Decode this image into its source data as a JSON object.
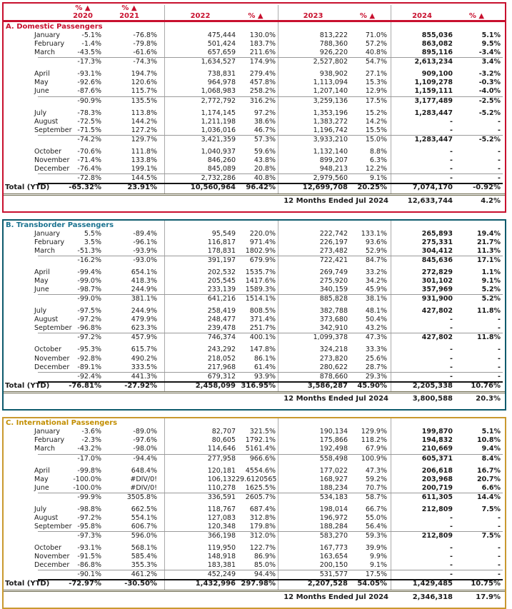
{
  "header": {
    "text_color": "#C8102E",
    "columns": [
      "% ▲\n2020",
      "% ▲\n2021",
      "2022",
      "% ▲",
      "2023",
      "% ▲",
      "2024",
      "% ▲"
    ],
    "column_names": [
      "pct-chg-2020",
      "pct-chg-2021",
      "year-2022",
      "pct-chg-2022",
      "year-2023",
      "pct-chg-2023",
      "year-2024",
      "pct-chg-2024"
    ]
  },
  "sections": [
    {
      "id": "domestic",
      "title": "A. Domestic Passengers",
      "border_color": "#C8102E",
      "title_color": "#C8102E",
      "show_header": true,
      "rows": [
        {
          "t": "m",
          "l": "January",
          "v": [
            "-5.1%",
            "-76.8%",
            "475,444",
            "130.0%",
            "813,222",
            "71.0%",
            "855,036",
            "5.1%"
          ]
        },
        {
          "t": "m",
          "l": "February",
          "v": [
            "-1.4%",
            "-79.8%",
            "501,424",
            "183.7%",
            "788,360",
            "57.2%",
            "863,082",
            "9.5%"
          ]
        },
        {
          "t": "m",
          "l": "March",
          "v": [
            "-43.5%",
            "-61.6%",
            "657,659",
            "211.6%",
            "926,220",
            "40.8%",
            "895,116",
            "-3.4%"
          ]
        },
        {
          "t": "s",
          "v": [
            "-17.3%",
            "-74.3%",
            "1,634,527",
            "174.9%",
            "2,527,802",
            "54.7%",
            "2,613,234",
            "3.4%"
          ]
        },
        {
          "t": "g"
        },
        {
          "t": "m",
          "l": "April",
          "v": [
            "-93.1%",
            "194.7%",
            "738,831",
            "279.4%",
            "938,902",
            "27.1%",
            "909,100",
            "-3.2%"
          ]
        },
        {
          "t": "m",
          "l": "May",
          "v": [
            "-92.6%",
            "120.6%",
            "964,978",
            "457.8%",
            "1,113,094",
            "15.3%",
            "1,109,278",
            "-0.3%"
          ]
        },
        {
          "t": "m",
          "l": "June",
          "v": [
            "-87.6%",
            "115.7%",
            "1,068,983",
            "258.2%",
            "1,207,140",
            "12.9%",
            "1,159,111",
            "-4.0%"
          ]
        },
        {
          "t": "s",
          "v": [
            "-90.9%",
            "135.5%",
            "2,772,792",
            "316.2%",
            "3,259,136",
            "17.5%",
            "3,177,489",
            "-2.5%"
          ]
        },
        {
          "t": "g"
        },
        {
          "t": "m",
          "l": "July",
          "v": [
            "-78.3%",
            "113.8%",
            "1,174,145",
            "97.2%",
            "1,353,196",
            "15.2%",
            "1,283,447",
            "-5.2%"
          ]
        },
        {
          "t": "m",
          "l": "August",
          "v": [
            "-72.5%",
            "144.2%",
            "1,211,198",
            "38.6%",
            "1,383,272",
            "14.2%",
            "-",
            "-"
          ]
        },
        {
          "t": "m",
          "l": "September",
          "v": [
            "-71.5%",
            "127.2%",
            "1,036,016",
            "46.7%",
            "1,196,742",
            "15.5%",
            "-",
            "-"
          ]
        },
        {
          "t": "s",
          "v": [
            "-74.2%",
            "129.7%",
            "3,421,359",
            "57.3%",
            "3,933,210",
            "15.0%",
            "1,283,447",
            "-5.2%"
          ]
        },
        {
          "t": "g"
        },
        {
          "t": "m",
          "l": "October",
          "v": [
            "-70.6%",
            "111.8%",
            "1,040,937",
            "59.6%",
            "1,132,140",
            "8.8%",
            "-",
            "-"
          ]
        },
        {
          "t": "m",
          "l": "November",
          "v": [
            "-71.4%",
            "133.8%",
            "846,260",
            "43.8%",
            "899,207",
            "6.3%",
            "-",
            "-"
          ]
        },
        {
          "t": "m",
          "l": "December",
          "v": [
            "-76.4%",
            "199.1%",
            "845,089",
            "20.8%",
            "948,213",
            "12.2%",
            "-",
            "-"
          ]
        },
        {
          "t": "s",
          "v": [
            "-72.8%",
            "144.5%",
            "2,732,286",
            "40.8%",
            "2,979,560",
            "9.1%",
            "-",
            "-"
          ]
        }
      ],
      "total": {
        "label": "Total (YTD)",
        "v": [
          "-65.32%",
          "23.91%",
          "10,560,964",
          "96.42%",
          "12,699,708",
          "20.25%",
          "7,074,170",
          "-0.92%"
        ]
      },
      "footer": {
        "label": "12 Months Ended Jul 2024",
        "value": "12,633,744",
        "pct": "4.2%"
      }
    },
    {
      "id": "transborder",
      "title": "B.  Transborder Passengers",
      "border_color": "#0D5A6C",
      "title_color": "#1B7390",
      "show_header": false,
      "rows": [
        {
          "t": "m",
          "l": "January",
          "v": [
            "5.5%",
            "-89.4%",
            "95,549",
            "220.0%",
            "222,742",
            "133.1%",
            "265,893",
            "19.4%"
          ]
        },
        {
          "t": "m",
          "l": "February",
          "v": [
            "3.5%",
            "-96.1%",
            "116,817",
            "971.4%",
            "226,197",
            "93.6%",
            "275,331",
            "21.7%"
          ]
        },
        {
          "t": "m",
          "l": "March",
          "v": [
            "-51.3%",
            "-93.9%",
            "178,831",
            "1802.9%",
            "273,482",
            "52.9%",
            "304,412",
            "11.3%"
          ]
        },
        {
          "t": "s",
          "v": [
            "-16.2%",
            "-93.0%",
            "391,197",
            "679.9%",
            "722,421",
            "84.7%",
            "845,636",
            "17.1%"
          ]
        },
        {
          "t": "g"
        },
        {
          "t": "m",
          "l": "April",
          "v": [
            "-99.4%",
            "654.1%",
            "202,532",
            "1535.7%",
            "269,749",
            "33.2%",
            "272,829",
            "1.1%"
          ]
        },
        {
          "t": "m",
          "l": "May",
          "v": [
            "-99.0%",
            "418.3%",
            "205,545",
            "1417.6%",
            "275,920",
            "34.2%",
            "301,102",
            "9.1%"
          ]
        },
        {
          "t": "m",
          "l": "June",
          "v": [
            "-98.7%",
            "244.9%",
            "233,139",
            "1589.3%",
            "340,159",
            "45.9%",
            "357,969",
            "5.2%"
          ]
        },
        {
          "t": "s",
          "v": [
            "-99.0%",
            "381.1%",
            "641,216",
            "1514.1%",
            "885,828",
            "38.1%",
            "931,900",
            "5.2%"
          ]
        },
        {
          "t": "g"
        },
        {
          "t": "m",
          "l": "July",
          "v": [
            "-97.5%",
            "244.9%",
            "258,419",
            "808.5%",
            "382,788",
            "48.1%",
            "427,802",
            "11.8%"
          ]
        },
        {
          "t": "m",
          "l": "August",
          "v": [
            "-97.2%",
            "479.9%",
            "248,477",
            "371.4%",
            "373,680",
            "50.4%",
            "-",
            "-"
          ]
        },
        {
          "t": "m",
          "l": "September",
          "v": [
            "-96.8%",
            "623.3%",
            "239,478",
            "251.7%",
            "342,910",
            "43.2%",
            "-",
            "-"
          ]
        },
        {
          "t": "s",
          "v": [
            "-97.2%",
            "457.9%",
            "746,374",
            "400.1%",
            "1,099,378",
            "47.3%",
            "427,802",
            "11.8%"
          ]
        },
        {
          "t": "g"
        },
        {
          "t": "m",
          "l": "October",
          "v": [
            "-95.3%",
            "615.7%",
            "243,292",
            "147.8%",
            "324,218",
            "33.3%",
            "-",
            "-"
          ]
        },
        {
          "t": "m",
          "l": "November",
          "v": [
            "-92.8%",
            "490.2%",
            "218,052",
            "86.1%",
            "273,820",
            "25.6%",
            "-",
            "-"
          ]
        },
        {
          "t": "m",
          "l": "December",
          "v": [
            "-89.1%",
            "333.5%",
            "217,968",
            "61.4%",
            "280,622",
            "28.7%",
            "-",
            "-"
          ]
        },
        {
          "t": "s",
          "v": [
            "-92.4%",
            "441.3%",
            "679,312",
            "93.9%",
            "878,660",
            "29.3%",
            "-",
            "-"
          ]
        }
      ],
      "total": {
        "label": "Total (YTD)",
        "v": [
          "-76.81%",
          "-27.92%",
          "2,458,099",
          "316.95%",
          "3,586,287",
          "45.90%",
          "2,205,338",
          "10.76%"
        ]
      },
      "footer": {
        "label": "12 Months Ended Jul 2024",
        "value": "3,800,588",
        "pct": "20.3%"
      }
    },
    {
      "id": "international",
      "title": "C.  International Passengers",
      "border_color": "#C9992F",
      "title_color": "#C28E00",
      "show_header": false,
      "rows": [
        {
          "t": "m",
          "l": "January",
          "v": [
            "-3.6%",
            "-89.0%",
            "82,707",
            "321.5%",
            "190,134",
            "129.9%",
            "199,870",
            "5.1%"
          ]
        },
        {
          "t": "m",
          "l": "February",
          "v": [
            "-2.3%",
            "-97.6%",
            "80,605",
            "1792.1%",
            "175,866",
            "118.2%",
            "194,832",
            "10.8%"
          ]
        },
        {
          "t": "m",
          "l": "March",
          "v": [
            "-43.2%",
            "-98.0%",
            "114,646",
            "5161.4%",
            "192,498",
            "67.9%",
            "210,669",
            "9.4%"
          ]
        },
        {
          "t": "s",
          "v": [
            "-17.0%",
            "-94.4%",
            "277,958",
            "966.6%",
            "558,498",
            "100.9%",
            "605,371",
            "8.4%"
          ]
        },
        {
          "t": "g"
        },
        {
          "t": "m",
          "l": "April",
          "v": [
            "-99.8%",
            "648.4%",
            "120,181",
            "4554.6%",
            "177,022",
            "47.3%",
            "206,618",
            "16.7%"
          ]
        },
        {
          "t": "m",
          "l": "May",
          "v": [
            "-100.0%",
            "#DIV/0!",
            "106,132",
            "29.6120565",
            "168,927",
            "59.2%",
            "203,968",
            "20.7%"
          ]
        },
        {
          "t": "m",
          "l": "June",
          "v": [
            "-100.0%",
            "#DIV/0!",
            "110,278",
            "1625.5%",
            "188,234",
            "70.7%",
            "200,719",
            "6.6%"
          ]
        },
        {
          "t": "s",
          "v": [
            "-99.9%",
            "3505.8%",
            "336,591",
            "2605.7%",
            "534,183",
            "58.7%",
            "611,305",
            "14.4%"
          ]
        },
        {
          "t": "g"
        },
        {
          "t": "m",
          "l": "July",
          "v": [
            "-98.8%",
            "662.5%",
            "118,767",
            "687.4%",
            "198,014",
            "66.7%",
            "212,809",
            "7.5%"
          ]
        },
        {
          "t": "m",
          "l": "August",
          "v": [
            "-97.2%",
            "554.1%",
            "127,083",
            "312.8%",
            "196,972",
            "55.0%",
            "-",
            "-"
          ]
        },
        {
          "t": "m",
          "l": "September",
          "v": [
            "-95.8%",
            "606.7%",
            "120,348",
            "179.8%",
            "188,284",
            "56.4%",
            "-",
            "-"
          ]
        },
        {
          "t": "s",
          "v": [
            "-97.3%",
            "596.0%",
            "366,198",
            "312.0%",
            "583,270",
            "59.3%",
            "212,809",
            "7.5%"
          ]
        },
        {
          "t": "g"
        },
        {
          "t": "m",
          "l": "October",
          "v": [
            "-93.1%",
            "568.1%",
            "119,950",
            "122.7%",
            "167,773",
            "39.9%",
            "-",
            "-"
          ]
        },
        {
          "t": "m",
          "l": "November",
          "v": [
            "-91.5%",
            "585.4%",
            "148,918",
            "86.9%",
            "163,654",
            "9.9%",
            "-",
            "-"
          ]
        },
        {
          "t": "m",
          "l": "December",
          "v": [
            "-86.8%",
            "355.3%",
            "183,381",
            "85.0%",
            "200,150",
            "9.1%",
            "-",
            "-"
          ]
        },
        {
          "t": "s",
          "v": [
            "-90.1%",
            "461.2%",
            "452,249",
            "94.4%",
            "531,577",
            "17.5%",
            "-",
            "-"
          ]
        }
      ],
      "total": {
        "label": "Total (YTD)",
        "v": [
          "-72.97%",
          "-30.50%",
          "1,432,996",
          "297.98%",
          "2,207,528",
          "54.05%",
          "1,429,485",
          "10.75%"
        ]
      },
      "footer": {
        "label": "12 Months Ended Jul 2024",
        "value": "2,346,318",
        "pct": "17.9%"
      }
    }
  ]
}
